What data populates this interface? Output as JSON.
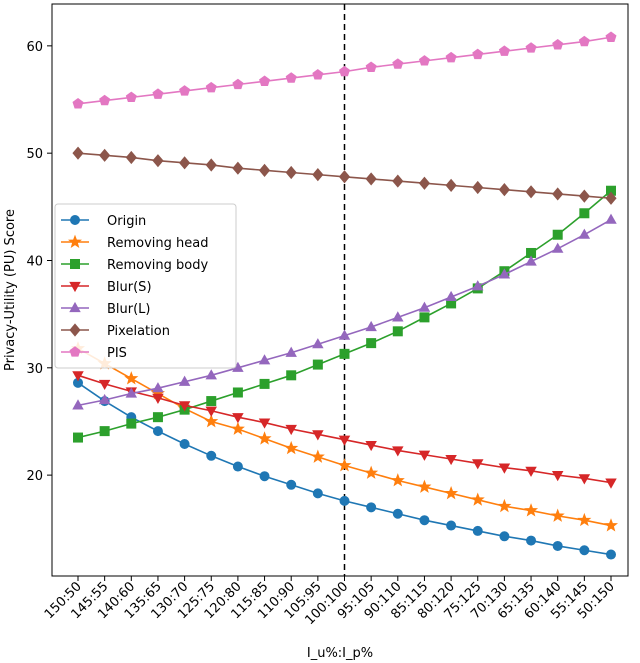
{
  "chart_data": {
    "type": "line",
    "title": "",
    "xlabel": "I_u%:I_p%",
    "ylabel": "Privacy-Utility (PU) Score",
    "categories": [
      "150:50",
      "145:55",
      "140:60",
      "135:65",
      "130:70",
      "125:75",
      "120:80",
      "115:85",
      "110:90",
      "105:95",
      "100:100",
      "95:105",
      "90:110",
      "85:115",
      "80:120",
      "75:125",
      "70:130",
      "65:135",
      "60:140",
      "55:145",
      "50:150"
    ],
    "ylim": [
      10.6,
      63.9
    ],
    "yticks": [
      20,
      30,
      40,
      50,
      60
    ],
    "grid": false,
    "legend_position": "center-left",
    "reference_line": {
      "category": "100:100",
      "style": "dashed",
      "color": "#000000"
    },
    "series": [
      {
        "name": "Origin",
        "color": "#1f77b4",
        "marker": "circle",
        "values": [
          28.6,
          26.9,
          25.4,
          24.1,
          22.9,
          21.8,
          20.8,
          19.9,
          19.1,
          18.3,
          17.6,
          17.0,
          16.4,
          15.8,
          15.3,
          14.8,
          14.3,
          13.9,
          13.4,
          13.0,
          12.6
        ]
      },
      {
        "name": "Removing head",
        "color": "#ff7f0e",
        "marker": "star",
        "values": [
          31.8,
          30.4,
          29.0,
          27.6,
          26.2,
          25.0,
          24.3,
          23.4,
          22.5,
          21.7,
          20.9,
          20.2,
          19.5,
          18.9,
          18.3,
          17.7,
          17.1,
          16.7,
          16.2,
          15.8,
          15.3
        ]
      },
      {
        "name": "Removing body",
        "color": "#2ca02c",
        "marker": "square",
        "values": [
          23.5,
          24.1,
          24.8,
          25.4,
          26.1,
          26.9,
          27.7,
          28.5,
          29.3,
          30.3,
          31.3,
          32.3,
          33.4,
          34.7,
          36.0,
          37.4,
          39.0,
          40.7,
          42.4,
          44.4,
          46.5
        ]
      },
      {
        "name": "Blur(S)",
        "color": "#d62728",
        "marker": "triangle-down",
        "values": [
          29.3,
          28.5,
          27.8,
          27.2,
          26.5,
          26.0,
          25.4,
          24.9,
          24.3,
          23.8,
          23.3,
          22.8,
          22.3,
          21.9,
          21.5,
          21.1,
          20.7,
          20.4,
          20.0,
          19.7,
          19.3
        ]
      },
      {
        "name": "Blur(L)",
        "color": "#9467bd",
        "marker": "triangle-up",
        "values": [
          26.5,
          27.0,
          27.6,
          28.1,
          28.7,
          29.3,
          30.0,
          30.7,
          31.4,
          32.2,
          33.0,
          33.8,
          34.7,
          35.6,
          36.6,
          37.6,
          38.7,
          39.9,
          41.1,
          42.4,
          43.8
        ]
      },
      {
        "name": "Pixelation",
        "color": "#8c564b",
        "marker": "diamond",
        "values": [
          50.0,
          49.8,
          49.6,
          49.3,
          49.1,
          48.9,
          48.6,
          48.4,
          48.2,
          48.0,
          47.8,
          47.6,
          47.4,
          47.2,
          47.0,
          46.8,
          46.6,
          46.4,
          46.2,
          46.0,
          45.8
        ]
      },
      {
        "name": "PIS",
        "color": "#e377c2",
        "marker": "pentagon",
        "values": [
          54.6,
          54.9,
          55.2,
          55.5,
          55.8,
          56.1,
          56.4,
          56.7,
          57.0,
          57.3,
          57.6,
          58.0,
          58.3,
          58.6,
          58.9,
          59.2,
          59.5,
          59.8,
          60.1,
          60.4,
          60.8
        ]
      }
    ]
  }
}
